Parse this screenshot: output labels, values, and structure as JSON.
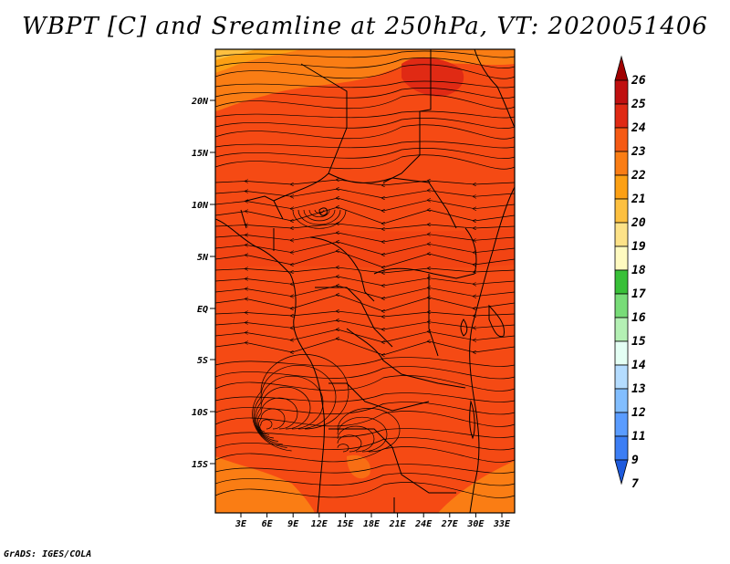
{
  "title": "WBPT [C] and Sreamline at 250hPa, VT: 2020051406",
  "credit": "GrADS: IGES/COLA",
  "map": {
    "lat_labels": [
      "20N",
      "15N",
      "10N",
      "5N",
      "EQ",
      "5S",
      "10S",
      "15S"
    ],
    "lon_labels": [
      "3E",
      "6E",
      "9E",
      "12E",
      "15E",
      "18E",
      "21E",
      "24E",
      "27E",
      "30E",
      "33E"
    ],
    "base_field_color": "#f54a14"
  },
  "colorbar": {
    "levels": [
      "26",
      "25",
      "24",
      "23",
      "22",
      "21",
      "20",
      "19",
      "18",
      "17",
      "16",
      "15",
      "14",
      "13",
      "12",
      "11",
      "9",
      "7"
    ],
    "colors": [
      "#a00000",
      "#c01010",
      "#e02a14",
      "#f55a14",
      "#fa7d14",
      "#fca014",
      "#fdc040",
      "#fde288",
      "#fffac0",
      "#38c038",
      "#78dc78",
      "#b4f0b4",
      "#e4fff4",
      "#b4dcff",
      "#82beff",
      "#5a9cff",
      "#3c7ef4",
      "#1e5adc"
    ]
  }
}
